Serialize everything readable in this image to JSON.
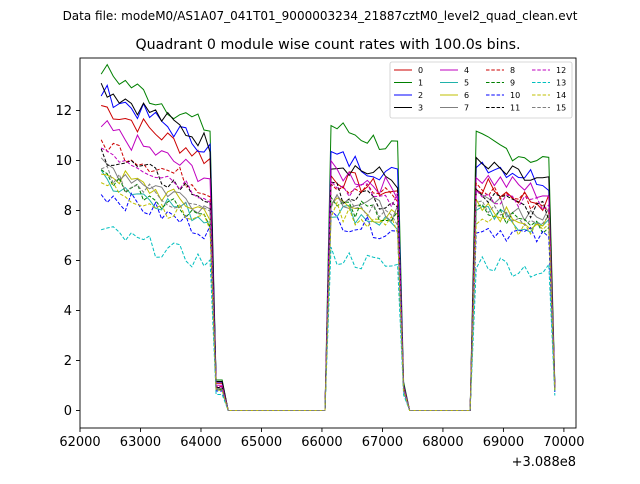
{
  "chart_data": {
    "type": "line",
    "suptitle": "Data file: modeM0/AS1A07_041T01_9000003234_21887cztM0_level2_quad_clean.evt",
    "title": "Quadrant 0 module wise count rates with 100.0s bins.",
    "xlabel": "",
    "ylabel": "",
    "x_offset_label": "+3.088e8",
    "xlim": [
      62000,
      70200
    ],
    "ylim": [
      -0.7,
      14.1
    ],
    "xticks": [
      62000,
      63000,
      64000,
      65000,
      66000,
      67000,
      68000,
      69000,
      70000
    ],
    "xtick_labels": [
      "62000",
      "63000",
      "64000",
      "65000",
      "66000",
      "67000",
      "68000",
      "69000",
      "70000"
    ],
    "yticks": [
      0,
      2,
      4,
      6,
      8,
      10,
      12
    ],
    "ytick_labels": [
      "0",
      "2",
      "4",
      "6",
      "8",
      "10",
      "12"
    ],
    "legend_position": "upper right",
    "segments": [
      {
        "start": 62350,
        "end": 64350,
        "step": 100,
        "plateau_end": 64150
      },
      {
        "start": 66150,
        "end": 67350,
        "step": 100,
        "plateau_end": 67250
      },
      {
        "start": 68550,
        "end": 69850,
        "step": 100,
        "plateau_end": 69750
      }
    ],
    "series": [
      {
        "name": "0",
        "color": "#cc0000",
        "dash": "solid",
        "levels": [
          10.9,
          9.4,
          9.0
        ]
      },
      {
        "name": "1",
        "color": "#008000",
        "dash": "solid",
        "levels": [
          12.2,
          11.4,
          10.8
        ]
      },
      {
        "name": "2",
        "color": "#0000ff",
        "dash": "solid",
        "levels": [
          11.4,
          10.2,
          10.0
        ]
      },
      {
        "name": "3",
        "color": "#000000",
        "dash": "solid",
        "levels": [
          11.6,
          10.0,
          9.8
        ]
      },
      {
        "name": "4",
        "color": "#bf00bf",
        "dash": "solid",
        "levels": [
          10.1,
          9.6,
          9.4
        ]
      },
      {
        "name": "5",
        "color": "#20b2aa",
        "dash": "solid",
        "levels": [
          8.3,
          8.1,
          7.9
        ]
      },
      {
        "name": "6",
        "color": "#bfbf00",
        "dash": "solid",
        "levels": [
          8.6,
          8.3,
          8.1
        ]
      },
      {
        "name": "7",
        "color": "#7f7f7f",
        "dash": "solid",
        "levels": [
          8.8,
          8.6,
          8.4
        ]
      },
      {
        "name": "8",
        "color": "#cc0000",
        "dash": "dashed",
        "levels": [
          9.6,
          9.2,
          8.9
        ]
      },
      {
        "name": "9",
        "color": "#008000",
        "dash": "dashed",
        "levels": [
          8.4,
          8.3,
          8.0
        ]
      },
      {
        "name": "10",
        "color": "#0000ff",
        "dash": "dashed",
        "levels": [
          7.8,
          7.7,
          7.4
        ]
      },
      {
        "name": "11",
        "color": "#000000",
        "dash": "dashed",
        "levels": [
          9.2,
          8.8,
          8.6
        ]
      },
      {
        "name": "12",
        "color": "#bf00bf",
        "dash": "dashed",
        "levels": [
          9.4,
          9.1,
          8.8
        ]
      },
      {
        "name": "13",
        "color": "#00bfbf",
        "dash": "dashed",
        "levels": [
          6.4,
          6.2,
          6.0
        ]
      },
      {
        "name": "14",
        "color": "#bfbf00",
        "dash": "dashed",
        "levels": [
          8.1,
          8.0,
          7.7
        ]
      },
      {
        "name": "15",
        "color": "#7f7f7f",
        "dash": "dashed",
        "levels": [
          8.5,
          8.4,
          8.1
        ]
      }
    ]
  }
}
